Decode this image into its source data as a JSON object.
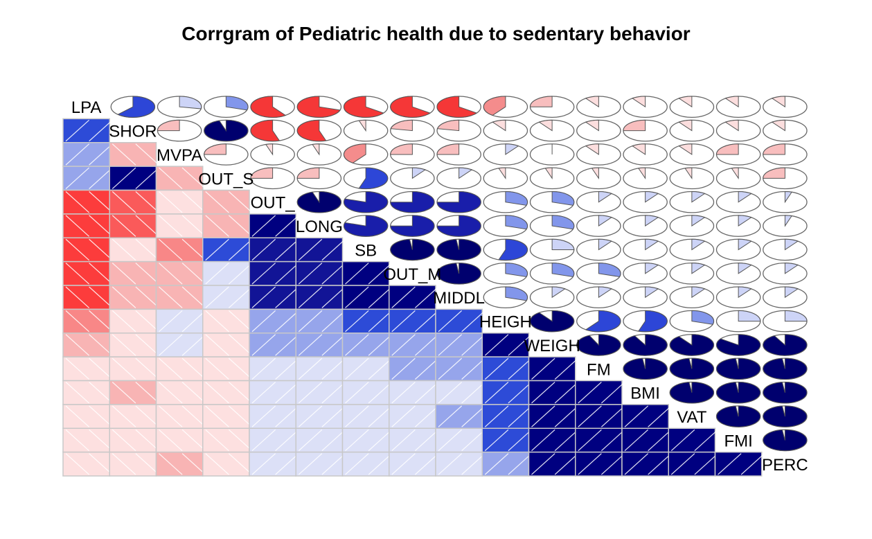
{
  "chart_data": {
    "type": "heatmap",
    "subtype": "corrgram",
    "title": "Corrgram of Pediatric health due to sedentary behavior",
    "lower_panel": "shade",
    "upper_panel": "pie",
    "diagonal_labels": [
      "LPA",
      "SHOR",
      "MVPA",
      "OUT_S",
      "OUT_",
      "LONG",
      "SB",
      "OUT_M",
      "MIDDL",
      "HEIGH",
      "WEIGH",
      "FM",
      "BMI",
      "VAT",
      "FMI",
      "PERC"
    ],
    "variables": [
      "LPA",
      "SHOR",
      "MVPA",
      "OUT_S",
      "OUT_",
      "LONG",
      "SB",
      "OUT_M",
      "MIDDL",
      "HEIGH",
      "WEIGH",
      "FM",
      "BMI",
      "VAT",
      "FMI",
      "PERC"
    ],
    "color_scale": {
      "negative": "#ff0000",
      "zero": "#ffffff",
      "positive": "#000080"
    },
    "matrix": [
      [
        1,
        0.62,
        0.28,
        0.3,
        -0.6,
        -0.7,
        -0.65,
        -0.65,
        -0.65,
        -0.4,
        -0.25,
        -0.1,
        -0.1,
        -0.1,
        -0.1,
        -0.1
      ],
      [
        0.62,
        1,
        -0.25,
        0.95,
        -0.55,
        -0.55,
        -0.05,
        -0.22,
        -0.22,
        -0.1,
        -0.1,
        -0.1,
        -0.25,
        -0.1,
        -0.1,
        -0.1
      ],
      [
        0.28,
        -0.25,
        1,
        -0.25,
        -0.05,
        -0.05,
        -0.4,
        -0.25,
        -0.25,
        0.1,
        0.0,
        -0.1,
        -0.1,
        -0.1,
        -0.25,
        -0.25
      ],
      [
        0.3,
        0.95,
        -0.25,
        1,
        -0.25,
        -0.25,
        0.55,
        0.1,
        0.1,
        -0.05,
        -0.05,
        -0.05,
        -0.05,
        -0.05,
        -0.05,
        -0.25
      ],
      [
        -0.6,
        -0.55,
        -0.05,
        -0.25,
        1,
        0.95,
        0.8,
        0.75,
        0.75,
        0.3,
        0.3,
        0.1,
        0.1,
        0.1,
        0.1,
        0.05
      ],
      [
        -0.7,
        -0.55,
        -0.05,
        -0.25,
        0.95,
        1,
        0.8,
        0.75,
        0.75,
        0.3,
        0.3,
        0.1,
        0.1,
        0.1,
        0.1,
        0.05
      ],
      [
        -0.65,
        -0.05,
        -0.4,
        0.55,
        0.8,
        0.8,
        1,
        0.98,
        0.98,
        0.55,
        0.25,
        0.1,
        0.1,
        0.1,
        0.1,
        0.1
      ],
      [
        -0.65,
        -0.22,
        -0.25,
        0.1,
        0.75,
        0.75,
        0.98,
        1,
        0.98,
        0.3,
        0.3,
        0.3,
        0.1,
        0.1,
        0.1,
        0.1
      ],
      [
        -0.65,
        -0.22,
        -0.25,
        0.1,
        0.75,
        0.75,
        0.98,
        0.98,
        1,
        0.3,
        0.1,
        0.1,
        0.1,
        0.1,
        0.1,
        0.1
      ],
      [
        -0.4,
        -0.1,
        0.1,
        -0.05,
        0.3,
        0.3,
        0.55,
        0.55,
        0.55,
        1,
        0.9,
        0.6,
        0.55,
        0.3,
        0.25,
        0.25
      ],
      [
        -0.25,
        -0.1,
        0.0,
        -0.05,
        0.3,
        0.3,
        0.3,
        0.3,
        0.3,
        0.9,
        1,
        0.93,
        0.92,
        0.9,
        0.85,
        0.92
      ],
      [
        -0.1,
        -0.1,
        -0.1,
        -0.05,
        0.1,
        0.1,
        0.1,
        0.3,
        0.3,
        0.6,
        0.93,
        1,
        0.98,
        0.98,
        0.98,
        0.98
      ],
      [
        -0.1,
        -0.25,
        -0.1,
        -0.05,
        0.1,
        0.1,
        0.1,
        0.1,
        0.1,
        0.55,
        0.92,
        0.98,
        1,
        0.98,
        0.98,
        0.98
      ],
      [
        -0.1,
        -0.1,
        -0.1,
        -0.05,
        0.1,
        0.1,
        0.1,
        0.1,
        0.3,
        0.55,
        0.9,
        0.98,
        0.98,
        1,
        0.98,
        0.98
      ],
      [
        -0.1,
        -0.1,
        -0.1,
        -0.05,
        0.1,
        0.1,
        0.1,
        0.1,
        0.1,
        0.55,
        0.85,
        0.98,
        0.98,
        0.98,
        1,
        0.98
      ],
      [
        -0.1,
        -0.1,
        -0.25,
        -0.05,
        0.1,
        0.1,
        0.1,
        0.1,
        0.1,
        0.3,
        0.92,
        0.98,
        0.98,
        0.98,
        0.98,
        1
      ]
    ]
  }
}
